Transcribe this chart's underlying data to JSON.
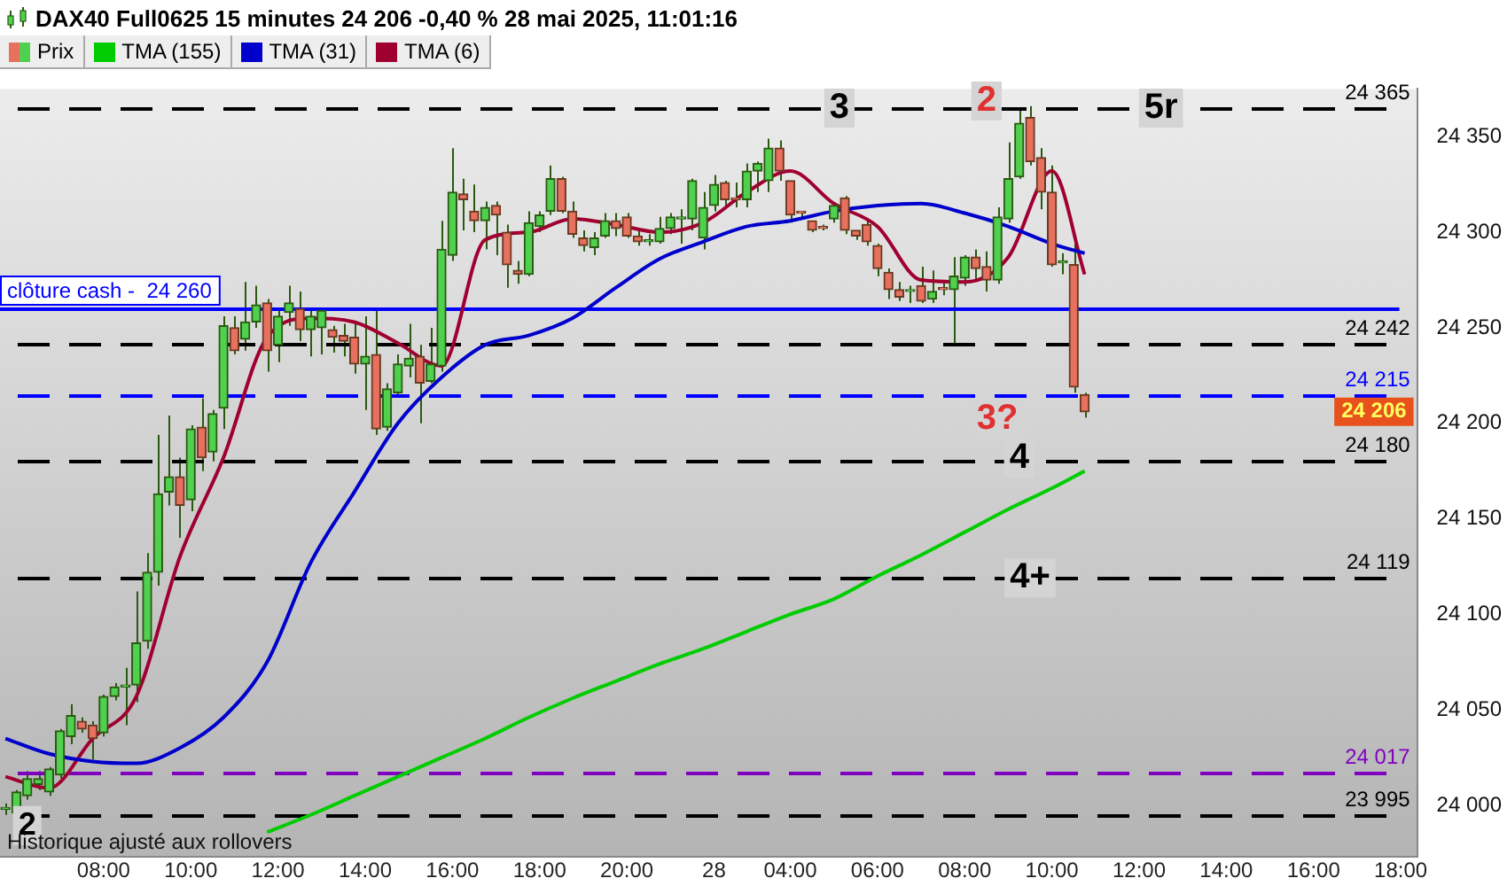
{
  "chart_data": {
    "type": "candlestick",
    "title": "DAX40 Full0625 15 minutes 24 206 -0,40 % 28 mai 2025, 11:01:16",
    "categories": [
      null,
      null,
      null,
      null,
      null,
      null,
      null,
      null,
      null,
      "08:00",
      null,
      null,
      null,
      null,
      null,
      null,
      null,
      "10:00",
      null,
      null,
      null,
      null,
      null,
      null,
      null,
      "12:00",
      null,
      null,
      null,
      null,
      null,
      null,
      null,
      "14:00",
      null,
      null,
      null,
      null,
      null,
      null,
      null,
      "16:00",
      null,
      null,
      null,
      null,
      null,
      null,
      null,
      "18:00",
      null,
      null,
      null,
      null,
      null,
      null,
      null,
      "20:00",
      null,
      null,
      null,
      null,
      null,
      null,
      null,
      "28",
      null,
      null,
      null,
      null,
      null,
      null,
      "04:00",
      null,
      null,
      null,
      null,
      null,
      null,
      null,
      "06:00",
      null,
      null,
      null,
      null,
      null,
      null,
      null,
      "08:00",
      null,
      null,
      null,
      null,
      null,
      null,
      null,
      "10:00",
      null,
      null,
      null,
      null,
      null,
      null,
      null,
      "12:00",
      null,
      null,
      null,
      null,
      null,
      null,
      null,
      "14:00",
      null,
      null,
      null,
      null,
      null,
      null,
      null,
      "16:00",
      null,
      null,
      null,
      null,
      null,
      null,
      null,
      "18:00",
      null
    ],
    "series": [
      {
        "name": "Prix",
        "ohlc": [
          [
            23998,
            24001,
            23995,
            23998
          ],
          [
            23996,
            24008,
            23995,
            24007
          ],
          [
            24005,
            24018,
            24003,
            24014
          ],
          [
            24011,
            24018,
            24008,
            24014
          ],
          [
            24007,
            24020,
            24005,
            24019
          ],
          [
            24016,
            24040,
            24014,
            24039
          ],
          [
            24036,
            24053,
            24032,
            24047
          ],
          [
            24044,
            24046,
            24038,
            24040
          ],
          [
            24042,
            24044,
            24024,
            24035
          ],
          [
            24038,
            24058,
            24036,
            24057
          ],
          [
            24057,
            24064,
            24055,
            24062
          ],
          [
            24062,
            24072,
            24042,
            24063
          ],
          [
            24063,
            24112,
            24054,
            24085
          ],
          [
            24086,
            24132,
            24082,
            24122
          ],
          [
            24122,
            24194,
            24115,
            24163
          ],
          [
            24164,
            24204,
            24157,
            24172
          ],
          [
            24172,
            24182,
            24140,
            24157
          ],
          [
            24160,
            24199,
            24154,
            24197
          ],
          [
            24198,
            24213,
            24175,
            24182
          ],
          [
            24185,
            24207,
            24180,
            24205
          ],
          [
            24208,
            24256,
            24197,
            24251
          ],
          [
            24250,
            24256,
            24236,
            24238
          ],
          [
            24244,
            24274,
            24238,
            24253
          ],
          [
            24253,
            24272,
            24250,
            24262
          ],
          [
            24263,
            24265,
            24227,
            24238
          ],
          [
            24241,
            24259,
            24232,
            24256
          ],
          [
            24258,
            24272,
            24251,
            24263
          ],
          [
            24260,
            24269,
            24243,
            24249
          ],
          [
            24249,
            24260,
            24235,
            24256
          ],
          [
            24250,
            24260,
            24236,
            24259
          ],
          [
            24249,
            24251,
            24237,
            24245
          ],
          [
            24246,
            24252,
            24235,
            24243
          ],
          [
            24245,
            24252,
            24226,
            24231
          ],
          [
            24231,
            24256,
            24207,
            24235
          ],
          [
            24236,
            24260,
            24194,
            24197
          ],
          [
            24198,
            24221,
            24196,
            24218
          ],
          [
            24216,
            24236,
            24214,
            24231
          ],
          [
            24230,
            24252,
            24224,
            24234
          ],
          [
            24235,
            24241,
            24200,
            24221
          ],
          [
            24222,
            24250,
            24221,
            24231
          ],
          [
            24230,
            24306,
            24227,
            24291
          ],
          [
            24288,
            24344,
            24285,
            24321
          ],
          [
            24320,
            24328,
            24301,
            24317
          ],
          [
            24311,
            24325,
            24300,
            24306
          ],
          [
            24306,
            24316,
            24291,
            24313
          ],
          [
            24314,
            24316,
            24288,
            24309
          ],
          [
            24300,
            24304,
            24271,
            24283
          ],
          [
            24280,
            24285,
            24273,
            24278
          ],
          [
            24278,
            24311,
            24277,
            24305
          ],
          [
            24303,
            24311,
            24300,
            24309
          ],
          [
            24311,
            24335,
            24309,
            24328
          ],
          [
            24328,
            24329,
            24310,
            24311
          ],
          [
            24311,
            24316,
            24297,
            24299
          ],
          [
            24297,
            24301,
            24290,
            24293
          ],
          [
            24292,
            24300,
            24288,
            24297
          ],
          [
            24298,
            24310,
            24297,
            24306
          ],
          [
            24306,
            24310,
            24298,
            24302
          ],
          [
            24308,
            24310,
            24297,
            24298
          ],
          [
            24298,
            24302,
            24293,
            24295
          ],
          [
            24295,
            24299,
            24293,
            24296
          ],
          [
            24295,
            24308,
            24294,
            24302
          ],
          [
            24302,
            24310,
            24299,
            24308
          ],
          [
            24307,
            24312,
            24294,
            24308
          ],
          [
            24307,
            24328,
            24301,
            24327
          ],
          [
            24297,
            24321,
            24291,
            24313
          ],
          [
            24314,
            24330,
            24311,
            24325
          ],
          [
            24326,
            24327,
            24314,
            24317
          ],
          [
            24318,
            24326,
            24313,
            24317
          ],
          [
            24317,
            24336,
            24313,
            24332
          ],
          [
            24332,
            24337,
            24321,
            24336
          ],
          [
            24327,
            24349,
            24321,
            24344
          ],
          [
            24344,
            24348,
            24327,
            24332
          ],
          [
            24327,
            24327,
            24305,
            24309
          ],
          [
            24311,
            24311,
            24307,
            24310
          ],
          [
            24306,
            24306,
            24300,
            24301
          ],
          [
            24303,
            24304,
            24301,
            24302
          ],
          [
            24307,
            24315,
            24305,
            24314
          ],
          [
            24318,
            24319,
            24299,
            24301
          ],
          [
            24301,
            24301,
            24296,
            24298
          ],
          [
            24304,
            24306,
            24293,
            24295
          ],
          [
            24293,
            24294,
            24277,
            24281
          ],
          [
            24279,
            24281,
            24265,
            24270
          ],
          [
            24270,
            24274,
            24264,
            24266
          ],
          [
            24269,
            24272,
            24263,
            24270
          ],
          [
            24272,
            24282,
            24263,
            24264
          ],
          [
            24265,
            24280,
            24263,
            24269
          ],
          [
            24271,
            24274,
            24267,
            24270
          ],
          [
            24270,
            24287,
            24241,
            24277
          ],
          [
            24276,
            24288,
            24272,
            24287
          ],
          [
            24287,
            24291,
            24274,
            24281
          ],
          [
            24282,
            24290,
            24269,
            24275
          ],
          [
            24275,
            24313,
            24273,
            24308
          ],
          [
            24307,
            24347,
            24305,
            24328
          ],
          [
            24329,
            24365,
            24328,
            24357
          ],
          [
            24360,
            24366,
            24335,
            24337
          ],
          [
            24339,
            24344,
            24312,
            24321
          ],
          [
            24321,
            24335,
            24282,
            24283
          ],
          [
            24284,
            24289,
            24278,
            24285
          ],
          [
            24283,
            24294,
            24216,
            24219
          ],
          [
            24215,
            24216,
            24203,
            24206
          ],
          null,
          null,
          null,
          null,
          null,
          null,
          null,
          null,
          null,
          null,
          null,
          null,
          null,
          null,
          null,
          null,
          null,
          null,
          null,
          null,
          null,
          null,
          null,
          null,
          null,
          null,
          null,
          null,
          null,
          null
        ]
      },
      {
        "name": "TMA (155)",
        "type": "line",
        "color": "#00cc00",
        "values": [
          null,
          null,
          null,
          null,
          null,
          null,
          null,
          null,
          null,
          null,
          null,
          null,
          null,
          null,
          null,
          null,
          null,
          null,
          null,
          null,
          null,
          null,
          null,
          null,
          23986,
          null,
          null,
          null,
          23995,
          null,
          null,
          null,
          24005,
          null,
          null,
          null,
          24015,
          null,
          null,
          null,
          24025,
          null,
          null,
          null,
          24035,
          null,
          null,
          null,
          24046,
          null,
          null,
          null,
          24056,
          null,
          null,
          null,
          24065,
          null,
          null,
          null,
          24074,
          null,
          null,
          null,
          24082,
          null,
          null,
          null,
          24091,
          null,
          null,
          null,
          24100,
          null,
          null,
          null,
          24108,
          null,
          null,
          null,
          24120,
          null,
          null,
          null,
          24131,
          null,
          null,
          null,
          24143,
          null,
          null,
          null,
          24155,
          null,
          null,
          null,
          24166,
          null,
          null,
          24175,
          null,
          null,
          null,
          null,
          null,
          null,
          null,
          null,
          null,
          null,
          null,
          null,
          null,
          null,
          null,
          null,
          null,
          null,
          null,
          null,
          null,
          null,
          null,
          null,
          null,
          null,
          null,
          null,
          null,
          null
        ]
      },
      {
        "name": "TMA (31)",
        "type": "line",
        "color": "#0000cc",
        "values": [
          24035,
          null,
          null,
          null,
          24027,
          null,
          null,
          null,
          24023,
          null,
          null,
          null,
          24022,
          null,
          null,
          null,
          24030,
          null,
          null,
          null,
          24046,
          null,
          null,
          null,
          24075,
          null,
          null,
          null,
          24127,
          null,
          null,
          null,
          24164,
          null,
          null,
          null,
          24200,
          null,
          null,
          null,
          24224,
          null,
          null,
          null,
          24241,
          null,
          null,
          null,
          24246,
          null,
          null,
          null,
          24255,
          null,
          null,
          null,
          24271,
          null,
          null,
          null,
          24286,
          null,
          null,
          null,
          24295,
          null,
          null,
          null,
          24303,
          null,
          null,
          null,
          24306,
          null,
          null,
          null,
          24311,
          null,
          null,
          null,
          24314,
          null,
          null,
          null,
          24315,
          null,
          null,
          null,
          24310,
          null,
          null,
          null,
          24303,
          null,
          null,
          null,
          24294,
          null,
          null,
          24289,
          null,
          null,
          null,
          null,
          null,
          null,
          null,
          null,
          null,
          null,
          null,
          null,
          null,
          null,
          null,
          null,
          null,
          null,
          null,
          null,
          null,
          null,
          null,
          null,
          null,
          null,
          null,
          null,
          null,
          null
        ]
      },
      {
        "name": "TMA (6)",
        "type": "line",
        "color": "#a00030",
        "values": [
          24015,
          null,
          null,
          null,
          24009,
          null,
          null,
          null,
          24035,
          null,
          null,
          null,
          24057,
          null,
          null,
          null,
          24130,
          null,
          null,
          null,
          24182,
          null,
          null,
          null,
          24245,
          null,
          null,
          null,
          24255,
          null,
          null,
          null,
          24253,
          null,
          null,
          null,
          24242,
          null,
          null,
          null,
          24230,
          null,
          null,
          null,
          24296,
          null,
          null,
          null,
          24300,
          null,
          null,
          null,
          24307,
          null,
          null,
          null,
          24304,
          null,
          null,
          null,
          24300,
          null,
          null,
          null,
          24305,
          null,
          null,
          null,
          24321,
          null,
          null,
          null,
          24332,
          null,
          null,
          null,
          24315,
          null,
          null,
          null,
          24303,
          null,
          null,
          null,
          24275,
          null,
          null,
          null,
          24274,
          null,
          null,
          null,
          24287,
          null,
          null,
          null,
          24332,
          null,
          null,
          24278,
          null,
          null,
          null,
          null,
          null,
          null,
          null,
          null,
          null,
          null,
          null,
          null,
          null,
          null,
          null,
          null,
          null,
          null,
          null,
          null,
          null,
          null,
          null,
          null,
          null,
          null,
          null,
          null,
          null,
          null
        ]
      }
    ],
    "ylim": [
      23973,
      24375
    ],
    "yticks": [
      {
        "value": 24000,
        "label": "24 000"
      },
      {
        "value": 24050,
        "label": "24 050"
      },
      {
        "value": 24100,
        "label": "24 100"
      },
      {
        "value": 24150,
        "label": "24 150"
      },
      {
        "value": 24200,
        "label": "24 200"
      },
      {
        "value": 24250,
        "label": "24 250"
      },
      {
        "value": 24300,
        "label": "24 300"
      },
      {
        "value": 24350,
        "label": "24 350"
      }
    ],
    "legend": "top left",
    "marker": "none",
    "grid": false,
    "ref_lines": [
      {
        "axis": "y",
        "value": 24365,
        "label": "24 365",
        "color": "#000000",
        "line_style": "dashed"
      },
      {
        "axis": "y",
        "value": 24260,
        "label": "clôture cash -  24 260",
        "color": "#0000ff",
        "line_style": "solid"
      },
      {
        "axis": "y",
        "value": 24242,
        "label": "24 242",
        "color": "#000000",
        "line_style": "dashed"
      },
      {
        "axis": "y",
        "value": 24215,
        "label": "24 215",
        "color": "#0000ff",
        "line_style": "dashed"
      },
      {
        "axis": "y",
        "value": 24180,
        "label": "24 180",
        "color": "#000000",
        "line_style": "dashed"
      },
      {
        "axis": "y",
        "value": 24119,
        "label": "24 119",
        "color": "#000000",
        "line_style": "dashed"
      },
      {
        "axis": "y",
        "value": 24017,
        "label": "24 017",
        "color": "#8000c0",
        "line_style": "dashed"
      },
      {
        "axis": "y",
        "value": 23995,
        "label": "23 995",
        "color": "#000000",
        "line_style": "dashed"
      }
    ],
    "annotations": [
      {
        "text": "3",
        "y": 24365
      },
      {
        "text": "2",
        "y": 24365
      },
      {
        "text": "5r",
        "y": 24365
      },
      {
        "text": "3?",
        "y": 24215
      },
      {
        "text": "4",
        "y": 24180
      },
      {
        "text": "4+",
        "y": 24119
      },
      {
        "text": "2",
        "y": 23995
      },
      "24 206",
      "Historique ajusté aux rollovers"
    ]
  }
}
